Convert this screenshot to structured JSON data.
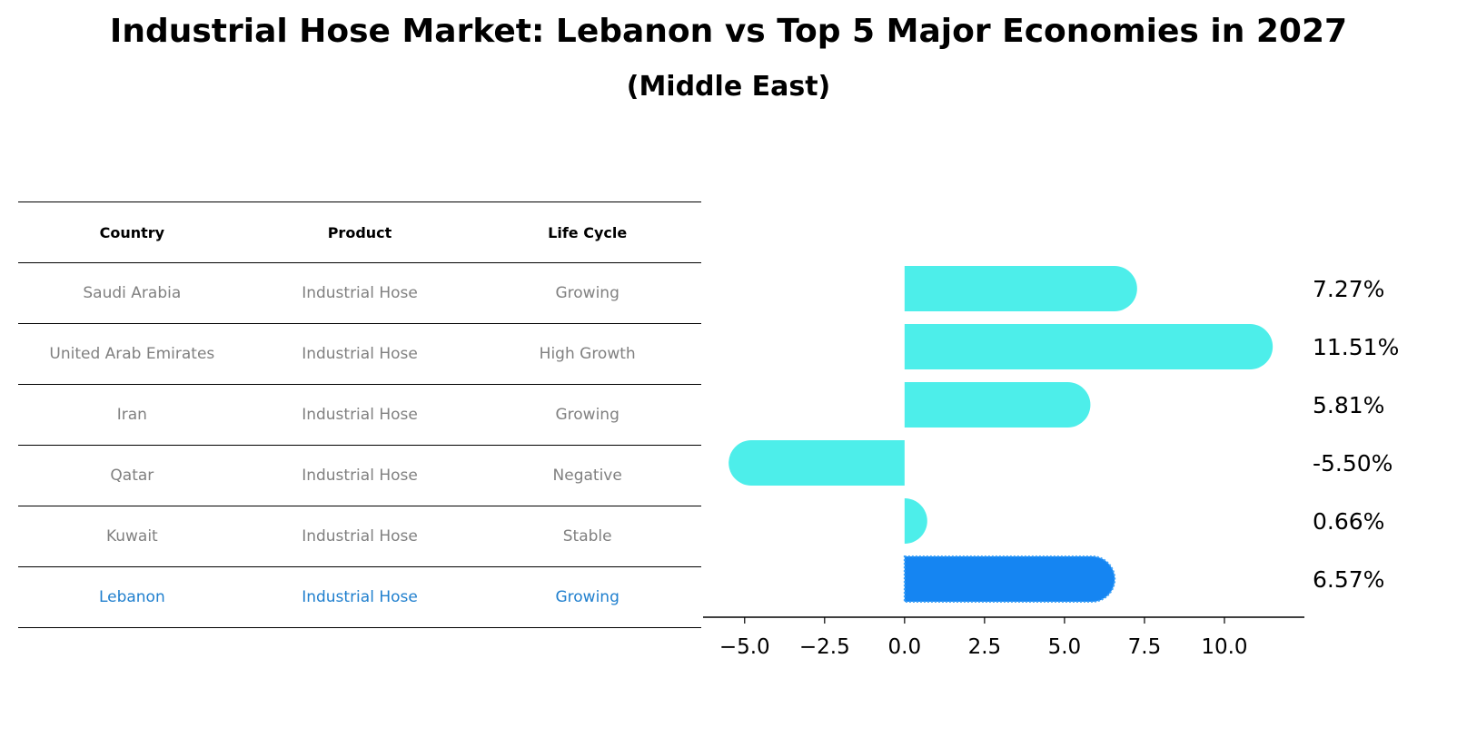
{
  "title": "Industrial Hose Market: Lebanon vs Top 5 Major Economies in 2027",
  "subtitle": "(Middle East)",
  "table": {
    "headers": [
      "Country",
      "Product",
      "Life Cycle"
    ],
    "rows": [
      {
        "country": "Saudi Arabia",
        "product": "Industrial Hose",
        "life_cycle": "Growing",
        "highlight": false
      },
      {
        "country": "United Arab Emirates",
        "product": "Industrial Hose",
        "life_cycle": "High Growth",
        "highlight": false
      },
      {
        "country": "Iran",
        "product": "Industrial Hose",
        "life_cycle": "Growing",
        "highlight": false
      },
      {
        "country": "Qatar",
        "product": "Industrial Hose",
        "life_cycle": "Negative",
        "highlight": false
      },
      {
        "country": "Kuwait",
        "product": "Industrial Hose",
        "life_cycle": "Stable",
        "highlight": false
      },
      {
        "country": "Lebanon",
        "product": "Industrial Hose",
        "life_cycle": "Growing",
        "highlight": true
      }
    ]
  },
  "chart_data": {
    "type": "bar",
    "orientation": "horizontal",
    "categories": [
      "Saudi Arabia",
      "United Arab Emirates",
      "Iran",
      "Qatar",
      "Kuwait",
      "Lebanon"
    ],
    "values": [
      7.27,
      11.51,
      5.81,
      -5.5,
      0.66,
      6.57
    ],
    "value_labels": [
      "7.27%",
      "11.51%",
      "5.81%",
      "-5.50%",
      "0.66%",
      "6.57%"
    ],
    "highlight_index": 5,
    "colors": {
      "default": "#4deeea",
      "highlight": "#1585f2"
    },
    "xlim": [
      -6.3,
      12.5
    ],
    "xticks": [
      -5.0,
      -2.5,
      0.0,
      2.5,
      5.0,
      7.5,
      10.0
    ],
    "xtick_labels": [
      "−5.0",
      "−2.5",
      "0.0",
      "2.5",
      "5.0",
      "7.5",
      "10.0"
    ],
    "grid": false
  }
}
